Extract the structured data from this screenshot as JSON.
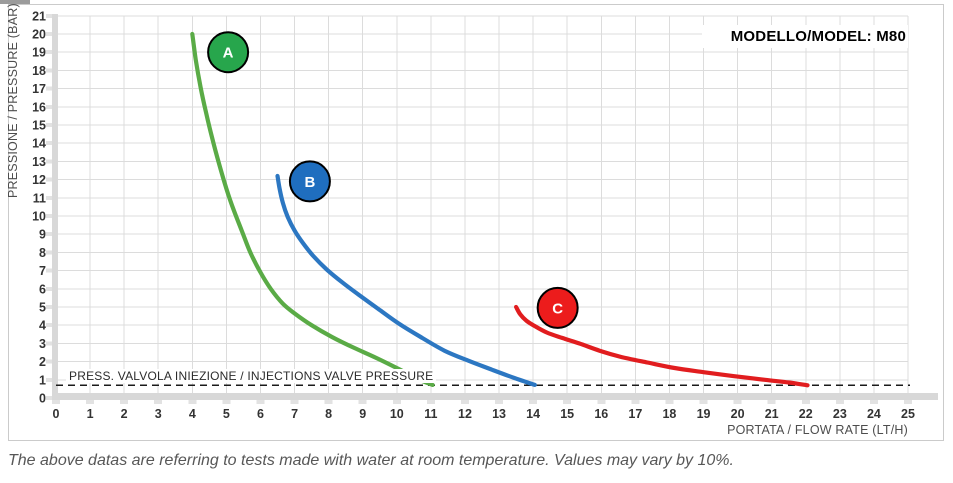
{
  "chart": {
    "footnote": "The above datas are referring to tests made with water at room temperature. Values may vary by 10%."
  },
  "chart_data": {
    "type": "line",
    "title": "MODELLO/MODEL: M80",
    "xlabel": "PORTATA / FLOW RATE (LT/H)",
    "ylabel": "PRESSIONE / PRESSURE (BAR)",
    "xlim": [
      0,
      25
    ],
    "ylim": [
      0,
      21
    ],
    "x_ticks": [
      0,
      1,
      2,
      3,
      4,
      5,
      6,
      7,
      8,
      9,
      10,
      11,
      12,
      13,
      14,
      15,
      16,
      17,
      18,
      19,
      20,
      21,
      22,
      23,
      24,
      25
    ],
    "y_ticks": [
      0,
      1,
      2,
      3,
      4,
      5,
      6,
      7,
      8,
      9,
      10,
      11,
      12,
      13,
      14,
      15,
      16,
      17,
      18,
      19,
      20,
      21
    ],
    "grid": true,
    "legend_position": "on-curve-bubbles",
    "injection_valve_line": {
      "label": "PRESS. VALVOLA INIEZIONE / INJECTIONS VALVE PRESSURE",
      "pressure": 0.7,
      "style": "dashed",
      "color": "#1a1a1a"
    },
    "series": [
      {
        "name": "A",
        "color": "#5AAB46",
        "marker_fill": "#27A64C",
        "marker_at": [
          5.05,
          19.0
        ],
        "points": [
          [
            4.0,
            20.0
          ],
          [
            4.1,
            18.6
          ],
          [
            4.24,
            17.1
          ],
          [
            4.4,
            15.7
          ],
          [
            4.58,
            14.3
          ],
          [
            4.78,
            12.9
          ],
          [
            5.0,
            11.5
          ],
          [
            5.22,
            10.3
          ],
          [
            5.45,
            9.2
          ],
          [
            5.7,
            8.0
          ],
          [
            6.0,
            6.9
          ],
          [
            6.3,
            6.0
          ],
          [
            6.65,
            5.2
          ],
          [
            7.0,
            4.65
          ],
          [
            7.5,
            4.0
          ],
          [
            8.1,
            3.35
          ],
          [
            8.75,
            2.75
          ],
          [
            9.4,
            2.2
          ],
          [
            10.1,
            1.55
          ],
          [
            10.6,
            1.05
          ],
          [
            11.05,
            0.72
          ]
        ]
      },
      {
        "name": "B",
        "color": "#2C77C2",
        "marker_fill": "#1F6EBF",
        "marker_at": [
          7.45,
          11.9
        ],
        "points": [
          [
            6.5,
            12.2
          ],
          [
            6.56,
            11.5
          ],
          [
            6.66,
            10.7
          ],
          [
            6.8,
            9.95
          ],
          [
            7.0,
            9.2
          ],
          [
            7.25,
            8.5
          ],
          [
            7.55,
            7.8
          ],
          [
            7.95,
            7.05
          ],
          [
            8.4,
            6.35
          ],
          [
            8.9,
            5.65
          ],
          [
            9.45,
            4.9
          ],
          [
            10.05,
            4.1
          ],
          [
            10.7,
            3.35
          ],
          [
            11.4,
            2.6
          ],
          [
            12.1,
            2.05
          ],
          [
            12.8,
            1.55
          ],
          [
            13.45,
            1.1
          ],
          [
            14.05,
            0.72
          ]
        ]
      },
      {
        "name": "C",
        "color": "#E11D1F",
        "marker_fill": "#EC1C1C",
        "marker_at": [
          14.72,
          4.95
        ],
        "points": [
          [
            13.5,
            5.0
          ],
          [
            13.62,
            4.6
          ],
          [
            13.8,
            4.25
          ],
          [
            14.05,
            3.95
          ],
          [
            14.4,
            3.6
          ],
          [
            14.85,
            3.3
          ],
          [
            15.35,
            3.0
          ],
          [
            15.95,
            2.6
          ],
          [
            16.6,
            2.25
          ],
          [
            17.35,
            1.95
          ],
          [
            18.15,
            1.65
          ],
          [
            19.0,
            1.42
          ],
          [
            19.9,
            1.2
          ],
          [
            20.8,
            1.0
          ],
          [
            21.5,
            0.85
          ],
          [
            22.05,
            0.7
          ]
        ]
      }
    ]
  }
}
